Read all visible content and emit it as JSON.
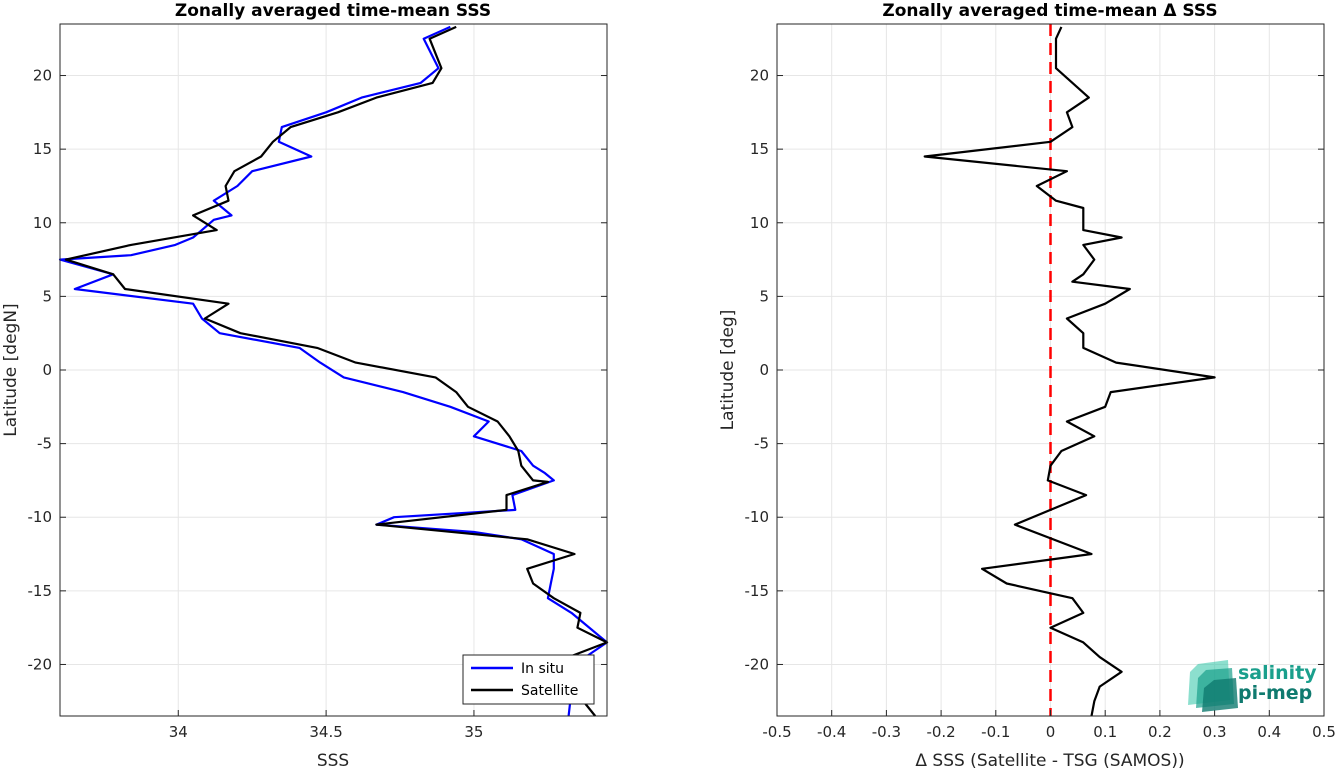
{
  "chart_data": [
    {
      "type": "line",
      "title": "Zonally averaged time-mean SSS",
      "xlabel": "SSS",
      "ylabel": "Latitude [degN]",
      "xlim": [
        33.6,
        35.45
      ],
      "ylim": [
        -23.5,
        23.5
      ],
      "xticks": [
        34,
        34.5,
        35
      ],
      "xtick_labels": [
        "34",
        "34.5",
        "35"
      ],
      "yticks": [
        -20,
        -15,
        -10,
        -5,
        0,
        5,
        10,
        15,
        20
      ],
      "ytick_labels": [
        "-20",
        "-15",
        "-10",
        "-5",
        "0",
        "5",
        "10",
        "15",
        "20"
      ],
      "grid": true,
      "legend_location": "bottom-right",
      "series": [
        {
          "name": "In situ",
          "color": "#0000ff",
          "x": [
            34.92,
            34.83,
            34.88,
            34.82,
            34.62,
            34.5,
            34.35,
            34.34,
            34.45,
            34.25,
            34.2,
            34.12,
            34.18,
            34.12,
            34.08,
            34.05,
            33.99,
            33.84,
            33.6,
            33.78,
            33.65,
            34.05,
            34.08,
            34.14,
            34.41,
            34.48,
            34.56,
            34.76,
            34.92,
            35.05,
            35.0,
            35.16,
            35.2,
            35.24,
            35.27,
            35.13,
            35.14,
            34.73,
            34.67,
            35.0,
            35.16,
            35.27,
            35.27,
            35.26,
            35.25,
            35.33,
            35.45,
            35.34,
            35.32
          ],
          "y": [
            23.3,
            22.5,
            20.5,
            19.5,
            18.5,
            17.5,
            16.5,
            15.5,
            14.5,
            13.5,
            12.5,
            11.5,
            10.5,
            10.2,
            9.5,
            9.0,
            8.5,
            7.8,
            7.5,
            6.5,
            5.5,
            4.5,
            3.5,
            2.5,
            1.5,
            0.5,
            -0.5,
            -1.5,
            -2.5,
            -3.5,
            -4.5,
            -5.5,
            -6.5,
            -7.0,
            -7.5,
            -8.5,
            -9.5,
            -10.0,
            -10.5,
            -11.0,
            -11.5,
            -12.5,
            -13.5,
            -14.5,
            -15.5,
            -16.5,
            -18.5,
            -20.0,
            -23.5
          ]
        },
        {
          "name": "Satellite",
          "color": "#000000",
          "x": [
            34.94,
            34.85,
            34.89,
            34.86,
            34.67,
            34.54,
            34.38,
            34.32,
            34.28,
            34.19,
            34.16,
            34.17,
            34.05,
            34.13,
            33.84,
            33.62,
            33.78,
            33.82,
            34.17,
            34.09,
            34.21,
            34.47,
            34.6,
            34.87,
            34.94,
            34.98,
            35.08,
            35.12,
            35.15,
            35.16,
            35.2,
            35.25,
            35.11,
            35.11,
            34.67,
            35.18,
            35.34,
            35.18,
            35.2,
            35.27,
            35.36,
            35.35,
            35.45,
            35.32,
            35.29,
            35.41
          ],
          "y": [
            23.3,
            22.5,
            20.5,
            19.5,
            18.5,
            17.5,
            16.5,
            15.5,
            14.5,
            13.5,
            12.5,
            11.5,
            10.5,
            9.5,
            8.5,
            7.5,
            6.5,
            5.5,
            4.5,
            3.5,
            2.5,
            1.5,
            0.5,
            -0.5,
            -1.5,
            -2.5,
            -3.5,
            -4.5,
            -5.5,
            -6.5,
            -7.5,
            -7.6,
            -8.5,
            -9.5,
            -10.5,
            -11.5,
            -12.5,
            -13.5,
            -14.5,
            -15.5,
            -16.5,
            -17.5,
            -18.5,
            -19.5,
            -20.5,
            -23.5
          ]
        }
      ]
    },
    {
      "type": "line",
      "title": "Zonally averaged time-mean Δ SSS",
      "xlabel": "Δ SSS (Satellite - TSG (SAMOS))",
      "ylabel": "Latitude [deg]",
      "xlim": [
        -0.5,
        0.5
      ],
      "ylim": [
        -23.5,
        23.5
      ],
      "xticks": [
        -0.5,
        -0.4,
        -0.3,
        -0.2,
        -0.1,
        0,
        0.1,
        0.2,
        0.3,
        0.4,
        0.5
      ],
      "xtick_labels": [
        "-0.5",
        "-0.4",
        "-0.3",
        "-0.2",
        "-0.1",
        "0",
        "0.1",
        "0.2",
        "0.3",
        "0.4",
        "0.5"
      ],
      "yticks": [
        -20,
        -15,
        -10,
        -5,
        0,
        5,
        10,
        15,
        20
      ],
      "ytick_labels": [
        "-20",
        "-15",
        "-10",
        "-5",
        "0",
        "5",
        "10",
        "15",
        "20"
      ],
      "grid": true,
      "reference_line": {
        "x": 0,
        "color": "#ff0000",
        "style": "dashed"
      },
      "series": [
        {
          "color": "#000000",
          "x": [
            0.02,
            0.01,
            0.01,
            0.07,
            0.03,
            0.04,
            0.0,
            -0.23,
            0.03,
            -0.025,
            0.01,
            0.06,
            0.06,
            0.13,
            0.06,
            0.08,
            0.06,
            0.04,
            0.145,
            0.1,
            0.03,
            0.06,
            0.06,
            0.12,
            0.3,
            0.11,
            0.1,
            0.03,
            0.08,
            0.02,
            0.0,
            -0.005,
            0.065,
            -0.065,
            0.075,
            -0.125,
            -0.08,
            0.04,
            0.06,
            0.0,
            0.06,
            0.09,
            0.13,
            0.09,
            0.08,
            0.075
          ],
          "y": [
            23.3,
            22.5,
            20.5,
            18.5,
            17.5,
            16.5,
            15.5,
            14.5,
            13.5,
            12.5,
            11.5,
            11.0,
            9.5,
            9.0,
            8.5,
            7.5,
            6.5,
            6.0,
            5.5,
            4.5,
            3.5,
            2.5,
            1.5,
            0.5,
            -0.5,
            -1.5,
            -2.5,
            -3.5,
            -4.5,
            -5.5,
            -6.5,
            -7.5,
            -8.5,
            -10.5,
            -12.5,
            -13.5,
            -14.5,
            -15.5,
            -16.5,
            -17.5,
            -18.5,
            -19.5,
            -20.5,
            -21.5,
            -22.5,
            -23.5
          ]
        }
      ]
    }
  ],
  "logo": {
    "line1": "salinity",
    "line2": "pi-mep",
    "colors": [
      "#1a9f8c",
      "#2ec4a6",
      "#0f7a6f"
    ]
  }
}
